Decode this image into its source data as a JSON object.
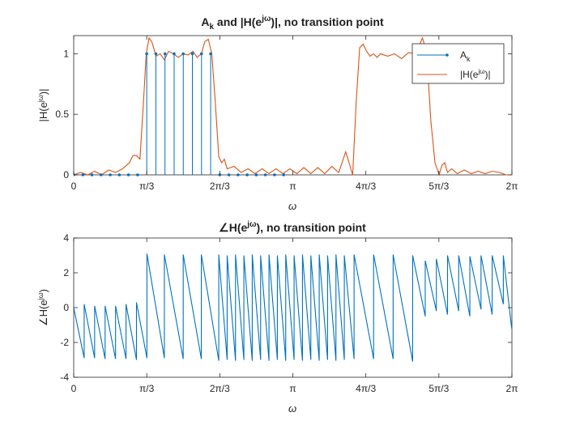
{
  "chart_data": [
    {
      "type": "line",
      "title": "A_k and |H(e^{jω})|, no transition point",
      "title_parts": [
        "A",
        "k",
        " and |H(e",
        "jω",
        ")|, no transition point"
      ],
      "xlabel": "ω",
      "ylabel_parts": [
        "|H(e",
        "jω",
        ")|"
      ],
      "xlim": [
        0,
        6.2832
      ],
      "ylim": [
        0,
        1.15
      ],
      "xticks": [
        0,
        1.0472,
        2.0944,
        3.1416,
        4.1888,
        5.236,
        6.2832
      ],
      "xtick_labels": [
        "0",
        "π/3",
        "2π/3",
        "π",
        "4π/3",
        "5π/3",
        "2π"
      ],
      "yticks": [
        0,
        0.5,
        1
      ],
      "ytick_labels": [
        "0",
        "0.5",
        "1"
      ],
      "legend": {
        "location": "top-right",
        "entries": [
          {
            "label": "A",
            "label_sub": "k",
            "color": "#0072BD",
            "marker": "dot"
          },
          {
            "label_parts": [
              "|H(e",
              "jω",
              ")|"
            ],
            "color": "#D95319"
          }
        ]
      },
      "series": [
        {
          "name": "A_k",
          "kind": "stem",
          "color": "#0072BD",
          "x": [
            0,
            0.1309,
            0.2618,
            0.3927,
            0.5236,
            0.6545,
            0.7854,
            0.9163,
            1.0472,
            1.1781,
            1.309,
            1.4399,
            1.5708,
            1.7017,
            1.8326,
            1.9635,
            2.0944,
            2.2253,
            2.3562,
            2.4871,
            2.618,
            2.7489,
            2.8798,
            3.0107
          ],
          "values": [
            0,
            0,
            0,
            0,
            0,
            0,
            0,
            0,
            1,
            1,
            1,
            1,
            1,
            1,
            1,
            1,
            0,
            0,
            0,
            0,
            0,
            0,
            0,
            0
          ]
        },
        {
          "name": "|H(e^{jω})|",
          "kind": "line",
          "color": "#D95319",
          "x": [
            0,
            0.1,
            0.2,
            0.3,
            0.4,
            0.5,
            0.6,
            0.7,
            0.8,
            0.85,
            0.9,
            0.95,
            1.0,
            1.04,
            1.08,
            1.12,
            1.18,
            1.24,
            1.3,
            1.36,
            1.43,
            1.5,
            1.57,
            1.64,
            1.71,
            1.77,
            1.83,
            1.88,
            1.93,
            1.98,
            2.03,
            2.08,
            2.12,
            2.16,
            2.2,
            2.3,
            2.4,
            2.5,
            2.6,
            2.7,
            2.8,
            2.9,
            3.0,
            3.1,
            3.2,
            3.3,
            3.4,
            3.5,
            3.6,
            3.7,
            3.8,
            3.9,
            4.0,
            4.05,
            4.1,
            4.15,
            4.2,
            4.25,
            4.3,
            4.35,
            4.4,
            4.5,
            4.6,
            4.7,
            4.8,
            4.9,
            5.0,
            5.06,
            5.12,
            5.18,
            5.24,
            5.28,
            5.32,
            5.36,
            5.42,
            5.5,
            5.6,
            5.7,
            5.8,
            5.9,
            6.0,
            6.1,
            6.2,
            6.28
          ],
          "values": [
            0.0,
            0.02,
            0.0,
            0.03,
            0.0,
            0.04,
            0.02,
            0.05,
            0.1,
            0.16,
            0.16,
            0.13,
            0.6,
            1.0,
            1.13,
            1.1,
            0.98,
            1.0,
            0.95,
            1.02,
            1.0,
            0.97,
            1.0,
            0.99,
            1.02,
            0.97,
            1.0,
            1.1,
            1.12,
            1.0,
            0.6,
            0.15,
            0.1,
            0.13,
            0.05,
            0.07,
            0.02,
            0.05,
            0.01,
            0.05,
            0.01,
            0.05,
            0.01,
            0.05,
            0.01,
            0.06,
            0.01,
            0.06,
            0.01,
            0.07,
            0.02,
            0.19,
            0.0,
            0.6,
            1.05,
            1.08,
            1.02,
            0.98,
            1.0,
            0.97,
            1.0,
            0.98,
            1.0,
            0.96,
            1.01,
            1.0,
            1.13,
            1.02,
            0.45,
            0.1,
            0.0,
            0.08,
            0.1,
            0.02,
            0.05,
            0.01,
            0.04,
            0.01,
            0.03,
            0.01,
            0.03,
            0.02,
            0.0,
            0.0
          ]
        }
      ]
    },
    {
      "type": "line",
      "title": "∠H(e^{jω}), no transition point",
      "title_parts": [
        "∠H(e",
        "jω",
        "), no transition point"
      ],
      "xlabel": "ω",
      "ylabel_parts": [
        "∠H(e",
        "jω",
        ")"
      ],
      "xlim": [
        0,
        6.2832
      ],
      "ylim": [
        -4,
        4
      ],
      "xticks": [
        0,
        1.0472,
        2.0944,
        3.1416,
        4.1888,
        5.236,
        6.2832
      ],
      "xtick_labels": [
        "0",
        "π/3",
        "2π/3",
        "π",
        "4π/3",
        "5π/3",
        "2π"
      ],
      "yticks": [
        -4,
        -2,
        0,
        2,
        4
      ],
      "ytick_labels": [
        "-4",
        "-2",
        "0",
        "2",
        "4"
      ],
      "series": [
        {
          "name": "",
          "kind": "line",
          "color": "#0072BD",
          "x": [
            0,
            0.15,
            0.15,
            0.3,
            0.3,
            0.45,
            0.45,
            0.6,
            0.6,
            0.75,
            0.75,
            0.9,
            0.9,
            1.05,
            1.05,
            1.3,
            1.3,
            1.57,
            1.57,
            1.83,
            1.83,
            2.08,
            2.08,
            2.2,
            2.2,
            2.32,
            2.32,
            2.44,
            2.44,
            2.56,
            2.56,
            2.68,
            2.68,
            2.8,
            2.8,
            2.92,
            2.92,
            3.04,
            3.04,
            3.16,
            3.16,
            3.28,
            3.28,
            3.4,
            3.4,
            3.52,
            3.52,
            3.64,
            3.64,
            3.76,
            3.76,
            3.88,
            3.88,
            4.02,
            4.02,
            4.3,
            4.3,
            4.58,
            4.58,
            4.86,
            4.86,
            5.04,
            5.04,
            5.2,
            5.2,
            5.36,
            5.36,
            5.52,
            5.52,
            5.68,
            5.68,
            5.84,
            5.84,
            6.0,
            6.0,
            6.16,
            6.16,
            6.28
          ],
          "values": [
            0.0,
            -2.9,
            0.2,
            -2.9,
            0.1,
            -2.95,
            0.1,
            -2.95,
            0.1,
            -2.95,
            0.2,
            -3.0,
            0.3,
            -2.9,
            3.1,
            -2.9,
            3.05,
            -2.95,
            3.05,
            -2.95,
            3.05,
            -3.05,
            3.05,
            -3.0,
            3.0,
            -3.05,
            3.05,
            -3.0,
            3.0,
            -3.05,
            3.05,
            -3.0,
            3.0,
            -3.05,
            3.05,
            -3.0,
            3.0,
            -3.05,
            3.05,
            -3.0,
            3.0,
            -3.05,
            3.05,
            -3.0,
            3.0,
            -3.05,
            3.05,
            -3.0,
            3.0,
            -3.05,
            3.05,
            -3.0,
            3.0,
            -2.95,
            3.05,
            -2.95,
            3.05,
            -2.95,
            3.05,
            -3.1,
            3.0,
            -0.5,
            2.7,
            -0.2,
            2.8,
            -0.4,
            3.0,
            -0.2,
            3.0,
            -0.5,
            2.95,
            -0.1,
            3.0,
            -0.4,
            3.0,
            0.2,
            3.0,
            -1.2
          ]
        }
      ]
    }
  ]
}
